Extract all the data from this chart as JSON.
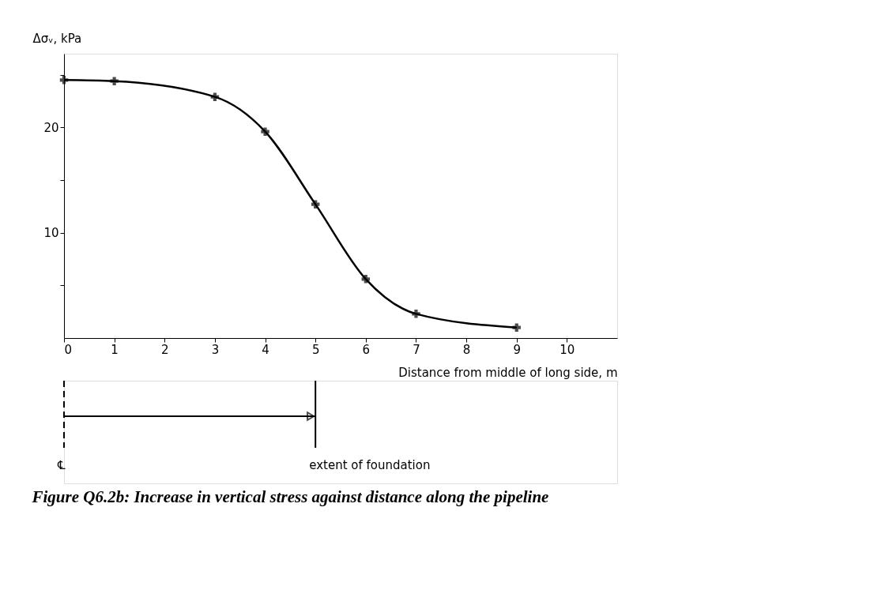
{
  "chart_data": {
    "type": "line",
    "xlabel": "Distance from middle of long side, m",
    "ylabel": "Δσᵥ, kPa",
    "x": [
      0,
      1,
      3,
      4,
      5,
      6,
      7,
      9
    ],
    "series": [
      {
        "color": "#000000",
        "values": [
          24.5,
          24.4,
          22.9,
          19.6,
          12.7,
          5.6,
          2.3,
          1.0
        ]
      }
    ],
    "marker": "cross",
    "line_style": "solid",
    "xlim": [
      0,
      11
    ],
    "xticks": [
      0,
      1,
      2,
      3,
      4,
      5,
      6,
      7,
      8,
      9,
      10
    ],
    "ylim": [
      0,
      27
    ],
    "yticks": [
      {
        "value": 5,
        "label": null
      },
      10,
      {
        "value": 15,
        "label": null
      },
      20,
      {
        "value": 25,
        "label": null
      }
    ],
    "ref_lines": [
      {
        "axis": "x",
        "value": 0,
        "label": "℄",
        "line_style": "dashed"
      },
      {
        "axis": "x",
        "value": 5,
        "label": "extent of foundation",
        "line_style": "solid"
      }
    ],
    "annotations": [
      "Figure Q6.2b: Increase in vertical stress against distance along the pipeline"
    ]
  }
}
